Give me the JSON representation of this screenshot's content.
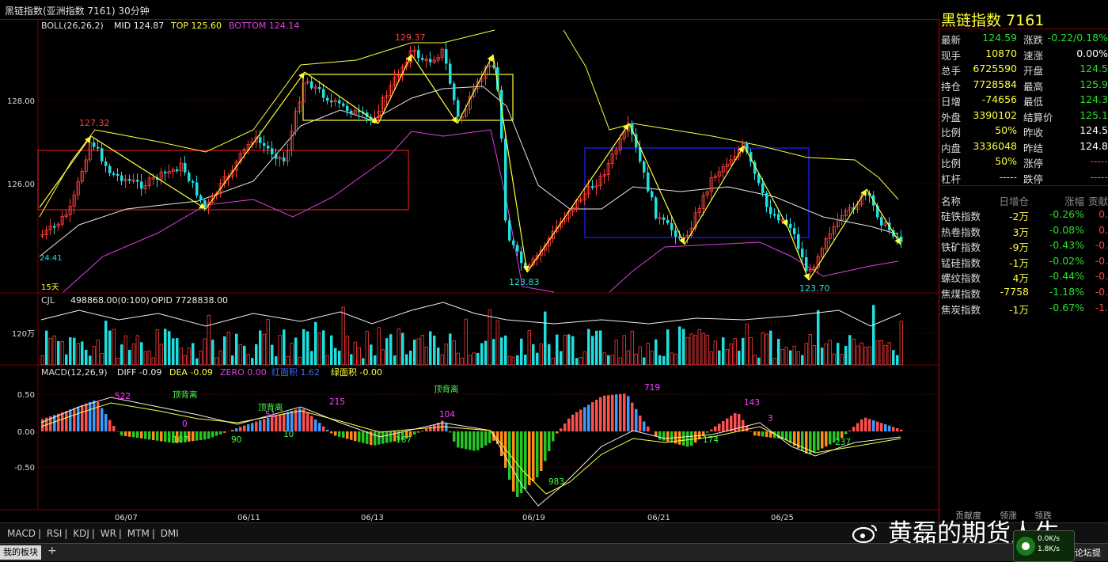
{
  "topbar": {
    "title": "黑链指数(亚洲指数 7161)   30分钟"
  },
  "chart_data": {
    "type": "candlestick",
    "main": {
      "indicator": "BOLL(26,26,2)",
      "mid": "MID 124.87",
      "top": "TOP 125.60",
      "bottom": "BOTTOM 124.14",
      "y_ticks": [
        "128.00",
        "126.00"
      ],
      "labels": [
        "127.32",
        "129.37",
        "123.83",
        "123.70",
        "24.41",
        "15天"
      ]
    },
    "volume": {
      "label": "CJL",
      "value": "498868.00(0:100)",
      "opid": "OPID 7728838.00",
      "y_tick": "120万"
    },
    "macd": {
      "label": "MACD(12,26,9)",
      "diff": "DIFF -0.09",
      "dea": "DEA -0.09",
      "zero": "ZERO 0.00",
      "red_area": "红面积 1.62",
      "green_area": "绿面积 -0.00",
      "y_ticks": [
        "0.50",
        "0.00",
        "-0.50"
      ],
      "annotations": [
        "522",
        "顶背离",
        "0",
        "107",
        "90",
        "顶背离",
        "51",
        "10",
        "215",
        "167",
        "顶背离",
        "104",
        "983",
        "719",
        "174",
        "143",
        "3",
        "237"
      ]
    },
    "x_labels": [
      "06/07",
      "06/11",
      "06/13",
      "06/19",
      "06/21",
      "06/25"
    ]
  },
  "panel": {
    "title": "黑链指数  7161",
    "quote": [
      {
        "l1": "最新",
        "v1": "124.59",
        "c1": "dn",
        "l2": "涨跌",
        "v2": "-0.22/0.18%",
        "c2": "dn"
      },
      {
        "l1": "现手",
        "v1": "10870",
        "c1": "yl",
        "l2": "速涨",
        "v2": "0.00%",
        "c2": "wh"
      },
      {
        "l1": "总手",
        "v1": "6725590",
        "c1": "yl",
        "l2": "开盘",
        "v2": "124.5",
        "c2": "dn"
      },
      {
        "l1": "持仓",
        "v1": "7728584",
        "c1": "yl",
        "l2": "最高",
        "v2": "125.9",
        "c2": "dn"
      },
      {
        "l1": "日增",
        "v1": "-74656",
        "c1": "yl",
        "l2": "最低",
        "v2": "124.3",
        "c2": "dn"
      },
      {
        "l1": "外盘",
        "v1": "3390102",
        "c1": "yl",
        "l2": "结算价",
        "v2": "125.1",
        "c2": "dn"
      },
      {
        "l1": "比例",
        "v1": "50%",
        "c1": "yl",
        "l2": "昨收",
        "v2": "124.5",
        "c2": "wh"
      },
      {
        "l1": "内盘",
        "v1": "3336048",
        "c1": "yl",
        "l2": "昨结",
        "v2": "124.8",
        "c2": "wh"
      },
      {
        "l1": "比例",
        "v1": "50%",
        "c1": "yl",
        "l2": "涨停",
        "v2": "-----",
        "c2": "up"
      },
      {
        "l1": "杠杆",
        "v1": "-----",
        "c1": "yl",
        "l2": "跌停",
        "v2": "-----",
        "c2": "dn"
      }
    ],
    "list_header": {
      "name": "名称",
      "chg": "日增仓",
      "pct": "涨幅",
      "contrib": "贡献"
    },
    "list": [
      {
        "name": "硅铁指数",
        "chg": "-2万",
        "cc": "yl",
        "pct": "-0.26%",
        "contrib": "0."
      },
      {
        "name": "热卷指数",
        "chg": "3万",
        "cc": "yl",
        "pct": "-0.08%",
        "contrib": "0."
      },
      {
        "name": "铁矿指数",
        "chg": "-9万",
        "cc": "yl",
        "pct": "-0.43%",
        "contrib": "-0."
      },
      {
        "name": "锰硅指数",
        "chg": "-1万",
        "cc": "yl",
        "pct": "-0.02%",
        "contrib": "-0."
      },
      {
        "name": "螺纹指数",
        "chg": "4万",
        "cc": "yl",
        "pct": "-0.44%",
        "contrib": "-0."
      },
      {
        "name": "焦煤指数",
        "chg": "-7758",
        "cc": "yl",
        "pct": "-1.18%",
        "contrib": "-0."
      },
      {
        "name": "焦炭指数",
        "chg": "-1万",
        "cc": "yl",
        "pct": "-0.67%",
        "contrib": "-1."
      }
    ],
    "tabs": [
      "贡献度",
      "领涨",
      "领跌"
    ]
  },
  "indicators": [
    "MACD",
    "RSI",
    "KDJ",
    "WR",
    "MTM",
    "DMI"
  ],
  "sheet_tab": "我的板块",
  "watermark": "黄磊的期货人生",
  "speed": {
    "up": "0.0K/s",
    "down": "1.8K/s"
  },
  "forum": "论坛提"
}
